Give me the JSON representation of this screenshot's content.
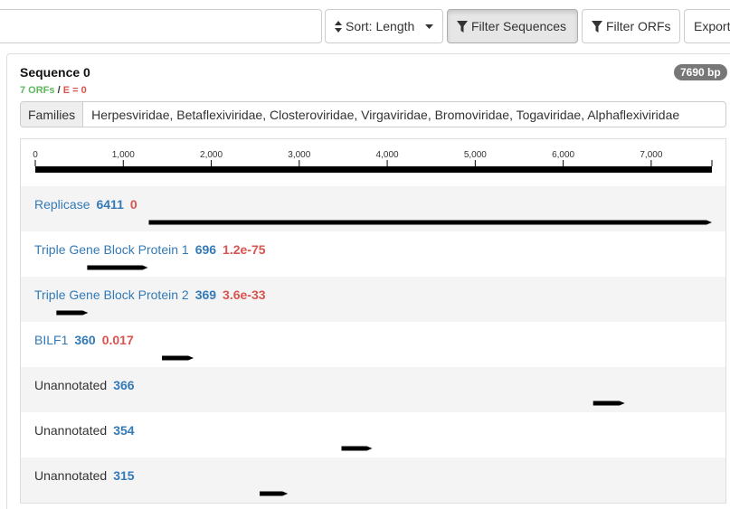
{
  "toolbar": {
    "search": {
      "value": "",
      "placeholder": ""
    },
    "sort_label": "Sort: Length",
    "filter_sequences_label": "Filter Sequences",
    "filter_orfs_label": "Filter ORFs",
    "export_label": "Export"
  },
  "sequence": {
    "title": "Sequence 0",
    "length_badge": "7690 bp",
    "orf_count": "7 ORFs",
    "separator": "/",
    "evalue": "E = 0",
    "families_label": "Families",
    "families_value": "Herpesviridae, Betaflexiviridae, Closteroviridae, Virgaviridae, Bromoviridae, Togaviridae, Alphaflexiviridae"
  },
  "ruler": {
    "max_bp": 7690,
    "ticks": [
      {
        "pos": 0,
        "label": "0"
      },
      {
        "pos": 1000,
        "label": "1,000"
      },
      {
        "pos": 2000,
        "label": "2,000"
      },
      {
        "pos": 3000,
        "label": "3,000"
      },
      {
        "pos": 4000,
        "label": "4,000"
      },
      {
        "pos": 5000,
        "label": "5,000"
      },
      {
        "pos": 6000,
        "label": "6,000"
      },
      {
        "pos": 7000,
        "label": "7,000"
      }
    ]
  },
  "orfs": [
    {
      "name": "Replicase",
      "length": "6411",
      "evalue": "0",
      "annotated": true,
      "start": 1290,
      "end": 7690
    },
    {
      "name": "Triple Gene Block Protein 1",
      "length": "696",
      "evalue": "1.2e-75",
      "annotated": true,
      "start": 590,
      "end": 1280
    },
    {
      "name": "Triple Gene Block Protein 2",
      "length": "369",
      "evalue": "3.6e-33",
      "annotated": true,
      "start": 240,
      "end": 600
    },
    {
      "name": "BILF1",
      "length": "360",
      "evalue": "0.017",
      "annotated": true,
      "start": 1440,
      "end": 1800
    },
    {
      "name": "Unannotated",
      "length": "366",
      "evalue": "",
      "annotated": false,
      "start": 6340,
      "end": 6700
    },
    {
      "name": "Unannotated",
      "length": "354",
      "evalue": "",
      "annotated": false,
      "start": 3480,
      "end": 3830
    },
    {
      "name": "Unannotated",
      "length": "315",
      "evalue": "",
      "annotated": false,
      "start": 2550,
      "end": 2870
    }
  ]
}
